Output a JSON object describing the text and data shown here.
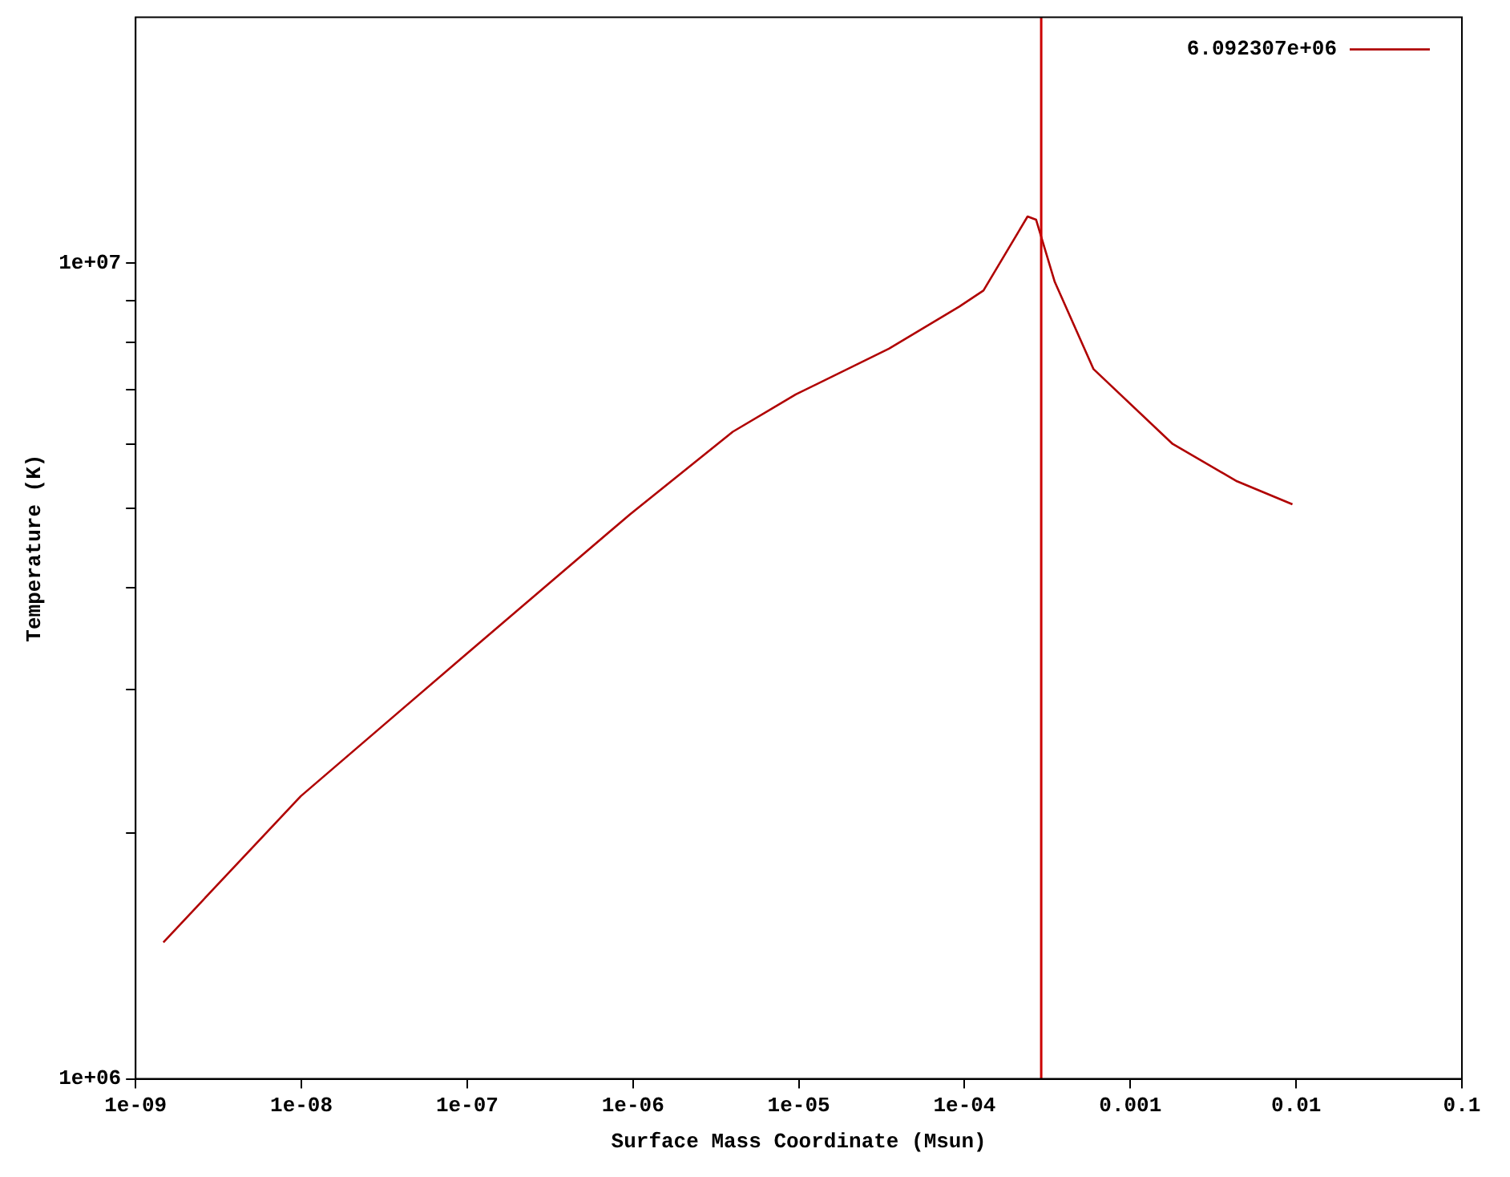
{
  "chart_data": {
    "type": "line",
    "xlabel": "Surface Mass Coordinate (Msun)",
    "ylabel": "Temperature (K)",
    "log": "xy",
    "legend": "top right",
    "grid": false,
    "marker": "none",
    "line_style": "solid",
    "xlim": [
      1e-09,
      0.1
    ],
    "xticks": [
      {
        "value": 1e-09,
        "label": "1e-09"
      },
      {
        "value": 1e-08,
        "label": "1e-08"
      },
      {
        "value": 1e-07,
        "label": "1e-07"
      },
      {
        "value": 1e-06,
        "label": "1e-06"
      },
      {
        "value": 1e-05,
        "label": "1e-05"
      },
      {
        "value": 0.0001,
        "label": "1e-04"
      },
      {
        "value": 0.001,
        "label": "0.001"
      },
      {
        "value": 0.01,
        "label": "0.01"
      },
      {
        "value": 0.1,
        "label": "0.1"
      }
    ],
    "ylim": [
      1000000,
      20000000
    ],
    "yticks": [
      {
        "value": 1000000,
        "label": "1e+06"
      },
      {
        "value": 2000000,
        "label": null
      },
      {
        "value": 3000000,
        "label": null
      },
      {
        "value": 4000000,
        "label": null
      },
      {
        "value": 5000000,
        "label": null
      },
      {
        "value": 6000000,
        "label": null
      },
      {
        "value": 7000000,
        "label": null
      },
      {
        "value": 8000000,
        "label": null
      },
      {
        "value": 9000000,
        "label": null
      },
      {
        "value": 10000000,
        "label": "1e+07"
      }
    ],
    "ref_lines": [
      {
        "axis": "x",
        "value": 0.00029,
        "color": "#cc0000"
      }
    ],
    "series": [
      {
        "name": "6.092307e+06",
        "color": "#b00000",
        "x": [
          1.47e-09,
          9.9e-09,
          9.6e-08,
          9.6e-07,
          4e-06,
          9.6e-06,
          3.5e-05,
          9.3e-05,
          0.00013,
          0.00024,
          0.00027,
          0.00035,
          0.0006,
          0.0018,
          0.0044,
          0.0095
        ],
        "values": [
          1470000,
          2220000,
          3300000,
          4920000,
          6210000,
          6900000,
          7850000,
          8840000,
          9250000,
          11400000,
          11300000,
          9480000,
          7410000,
          6000000,
          5400000,
          5060000
        ]
      }
    ]
  }
}
